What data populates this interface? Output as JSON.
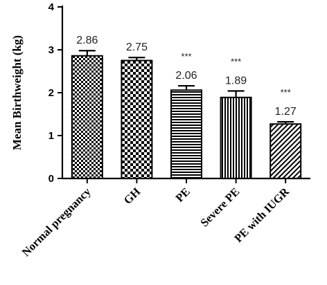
{
  "chart_data": {
    "type": "bar",
    "title": "",
    "xlabel": "",
    "ylabel": "Mean Birthweight (kg)",
    "ylim": [
      0,
      4
    ],
    "yticks": [
      "0",
      "1",
      "2",
      "3",
      "4"
    ],
    "grid": false,
    "categories": [
      "Normal pregnancy",
      "GH",
      "PE",
      "Severe PE",
      "PE with IUGR"
    ],
    "values": [
      2.86,
      2.75,
      2.06,
      1.89,
      1.27
    ],
    "error": [
      0.12,
      0.07,
      0.1,
      0.15,
      0.05
    ],
    "value_labels": [
      "2.86",
      "2.75",
      "2.06",
      "1.89",
      "1.27"
    ],
    "significance": [
      "",
      "",
      "***",
      "***",
      "***"
    ],
    "patterns": [
      "checker",
      "checker-coarse",
      "horizontal",
      "vertical",
      "diagonal"
    ]
  }
}
